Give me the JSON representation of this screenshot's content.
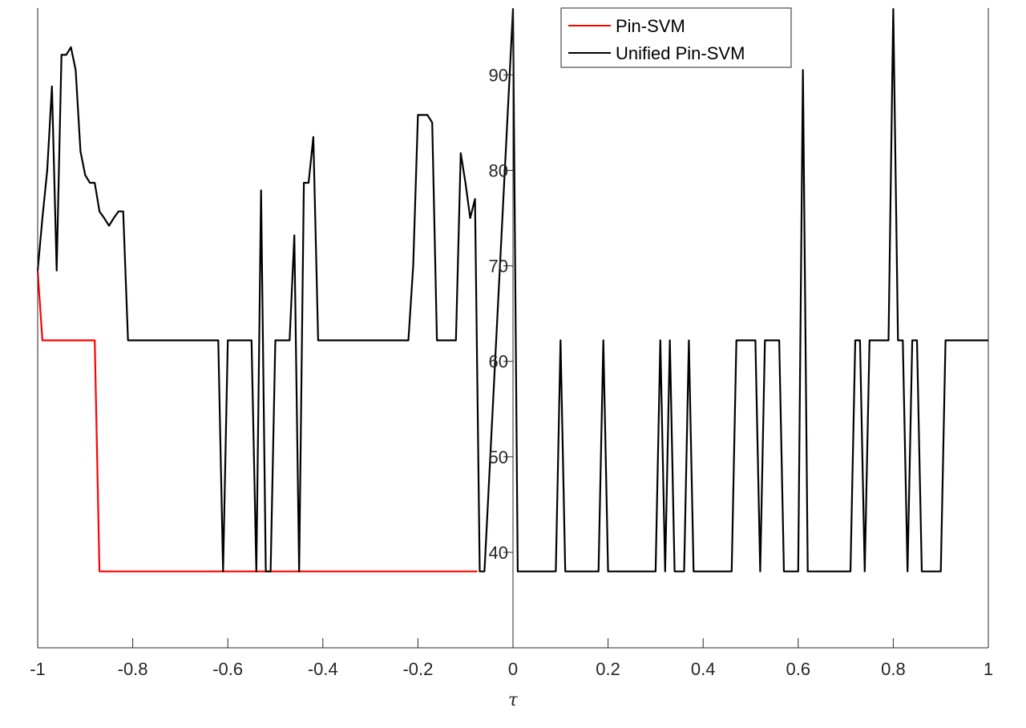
{
  "chart_data": {
    "type": "line",
    "title": "",
    "xlabel": "τ",
    "ylabel": "",
    "xlim": [
      -1,
      1
    ],
    "ylim": [
      30,
      97
    ],
    "grid": false,
    "legend_position": "top-right",
    "x_ticks": [
      -1,
      -0.8,
      -0.6,
      -0.4,
      -0.2,
      0,
      0.2,
      0.4,
      0.6,
      0.8,
      1
    ],
    "x_tick_labels": [
      "-1",
      "-0.8",
      "-0.6",
      "-0.4",
      "-0.2",
      "0",
      "0.2",
      "0.4",
      "0.6",
      "0.8",
      "1"
    ],
    "y_ticks": [
      40,
      50,
      60,
      70,
      80,
      90
    ],
    "y_tick_labels": [
      "40",
      "50",
      "60",
      "70",
      "80",
      "90"
    ],
    "series": [
      {
        "name": "Pin-SVM",
        "color": "#ff0000",
        "x": [
          -1,
          -0.99,
          -0.88,
          -0.87,
          -0.075
        ],
        "y": [
          69.5,
          62.2,
          62.2,
          38.0,
          38.0
        ]
      },
      {
        "name": "Unified Pin-SVM",
        "color": "#000000",
        "x": [
          -1,
          -0.99,
          -0.98,
          -0.97,
          -0.96,
          -0.95,
          -0.94,
          -0.93,
          -0.92,
          -0.91,
          -0.9,
          -0.89,
          -0.88,
          -0.87,
          -0.86,
          -0.85,
          -0.84,
          -0.83,
          -0.82,
          -0.81,
          -0.8,
          -0.62,
          -0.61,
          -0.6,
          -0.55,
          -0.54,
          -0.53,
          -0.52,
          -0.51,
          -0.5,
          -0.47,
          -0.46,
          -0.45,
          -0.44,
          -0.43,
          -0.42,
          -0.41,
          -0.22,
          -0.21,
          -0.2,
          -0.19,
          -0.18,
          -0.17,
          -0.16,
          -0.12,
          -0.11,
          -0.1,
          -0.09,
          -0.08,
          -0.07,
          -0.06,
          0,
          0.01,
          0.09,
          0.1,
          0.11,
          0.18,
          0.19,
          0.2,
          0.3,
          0.31,
          0.32,
          0.33,
          0.34,
          0.36,
          0.37,
          0.38,
          0.46,
          0.47,
          0.51,
          0.52,
          0.53,
          0.56,
          0.57,
          0.6,
          0.61,
          0.62,
          0.71,
          0.72,
          0.73,
          0.74,
          0.75,
          0.79,
          0.8,
          0.81,
          0.82,
          0.83,
          0.84,
          0.85,
          0.86,
          0.9,
          0.91,
          1.0
        ],
        "y": [
          69.5,
          75.0,
          80.0,
          88.8,
          69.5,
          92.1,
          92.1,
          92.9,
          90.5,
          82.0,
          79.5,
          78.7,
          78.7,
          75.7,
          75.0,
          74.2,
          75.0,
          75.7,
          75.7,
          62.2,
          62.2,
          62.2,
          38.0,
          62.2,
          62.2,
          38.0,
          77.9,
          38.0,
          38.0,
          62.2,
          62.2,
          73.2,
          38.0,
          78.7,
          78.7,
          83.5,
          62.2,
          62.2,
          70.0,
          85.8,
          85.8,
          85.8,
          85.0,
          62.2,
          62.2,
          81.8,
          78.7,
          75.0,
          77.0,
          38.0,
          38.0,
          96.9,
          38.0,
          38.0,
          62.2,
          38.0,
          38.0,
          62.2,
          38.0,
          38.0,
          62.2,
          38.0,
          62.2,
          38.0,
          38.0,
          62.2,
          38.0,
          38.0,
          62.2,
          62.2,
          38.0,
          62.2,
          62.2,
          38.0,
          38.0,
          90.5,
          38.0,
          38.0,
          62.2,
          62.2,
          38.0,
          62.2,
          62.2,
          96.9,
          62.2,
          62.2,
          38.0,
          62.2,
          62.2,
          38.0,
          38.0,
          62.2,
          62.2
        ]
      }
    ]
  }
}
